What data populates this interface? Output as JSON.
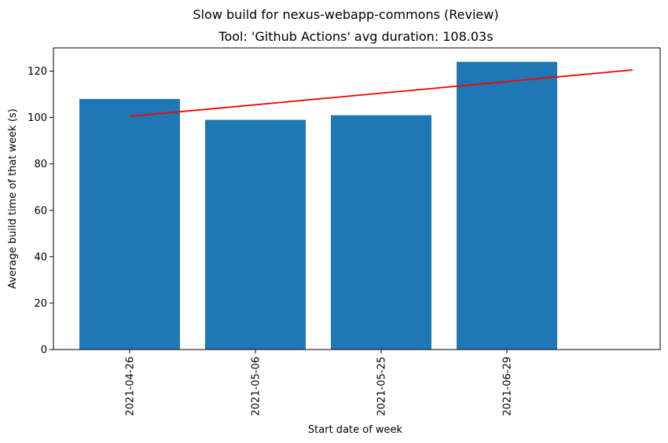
{
  "chart_data": {
    "type": "bar",
    "suptitle": "Slow build for nexus-webapp-commons (Review)",
    "title": "Tool: 'Github Actions' avg duration: 108.03s",
    "xlabel": "Start date of week",
    "ylabel": "Average build time of that week (s)",
    "categories": [
      "2021-04-26",
      "2021-05-06",
      "2021-05-25",
      "2021-06-29"
    ],
    "values": [
      108,
      99,
      101,
      124
    ],
    "bar_color": "#1f77b4",
    "trend_line": {
      "color": "#ff0000",
      "x": [
        0,
        4
      ],
      "y": [
        100.5,
        120.5
      ]
    },
    "ylim": [
      0,
      130
    ],
    "yticks": [
      0,
      20,
      40,
      60,
      80,
      100,
      120
    ],
    "grid": false,
    "legend": "none"
  }
}
